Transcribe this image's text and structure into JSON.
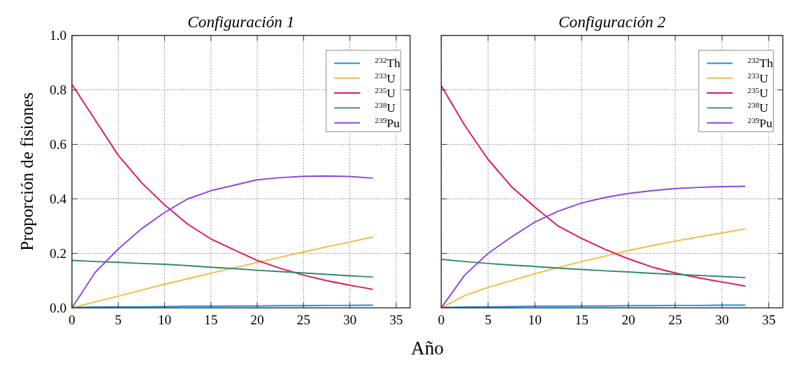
{
  "chart_data": [
    {
      "type": "line",
      "title": "Configuración 1",
      "xlabel": "Año",
      "ylabel": "Proporción de fisiones",
      "x": [
        0,
        2.5,
        5,
        7.5,
        10,
        12.5,
        15,
        17.5,
        20,
        22.5,
        25,
        27.5,
        30,
        32.5
      ],
      "xlim": [
        0,
        36.5
      ],
      "xticks": [
        0,
        5,
        10,
        15,
        20,
        25,
        30,
        35
      ],
      "ylim": [
        0,
        1
      ],
      "yticks": [
        {
          "value": 0,
          "label": "0.0"
        },
        0.2,
        0.4,
        0.6,
        0.8,
        {
          "value": 1,
          "label": "1.0"
        }
      ],
      "grid": true,
      "legend": "top right",
      "series": [
        {
          "name": "$^{232}$Th",
          "color": "#1f8fdc",
          "values": [
            0.002,
            0.003,
            0.004,
            0.004,
            0.005,
            0.006,
            0.006,
            0.007,
            0.007,
            0.008,
            0.008,
            0.009,
            0.009,
            0.01
          ]
        },
        {
          "name": "$^{233}$U",
          "color": "#f5b942",
          "values": [
            0,
            0.022,
            0.043,
            0.065,
            0.087,
            0.107,
            0.127,
            0.147,
            0.167,
            0.186,
            0.205,
            0.224,
            0.242,
            0.26
          ]
        },
        {
          "name": "$^{235}$U",
          "color": "#e0155a",
          "values": [
            0.82,
            0.69,
            0.56,
            0.46,
            0.378,
            0.307,
            0.253,
            0.213,
            0.174,
            0.145,
            0.12,
            0.1,
            0.083,
            0.068
          ]
        },
        {
          "name": "$^{238}$U",
          "color": "#2e8a66",
          "values": [
            0.174,
            0.17,
            0.167,
            0.163,
            0.16,
            0.155,
            0.149,
            0.144,
            0.138,
            0.133,
            0.128,
            0.123,
            0.118,
            0.113
          ]
        },
        {
          "name": "$^{239}$Pu",
          "color": "#8a46e0",
          "values": [
            0,
            0.13,
            0.216,
            0.29,
            0.35,
            0.4,
            0.43,
            0.45,
            0.47,
            0.478,
            0.483,
            0.484,
            0.482,
            0.476
          ]
        }
      ]
    },
    {
      "type": "line",
      "title": "Configuración 2",
      "x": [
        0,
        2.5,
        5,
        7.5,
        10,
        12.5,
        15,
        17.5,
        20,
        22.5,
        25,
        27.5,
        30,
        32.5
      ],
      "xlim": [
        0,
        36.5
      ],
      "xticks": [
        0,
        5,
        10,
        15,
        20,
        25,
        30,
        35
      ],
      "ylim": [
        0,
        1
      ],
      "yticks": [
        0,
        0.2,
        0.4,
        0.6,
        0.8,
        1
      ],
      "tick_labels": "x",
      "grid": true,
      "legend": "top right",
      "series": [
        {
          "name": "$^{232}$Th",
          "color": "#1f8fdc",
          "values": [
            0.002,
            0.003,
            0.004,
            0.005,
            0.006,
            0.006,
            0.007,
            0.007,
            0.008,
            0.008,
            0.009,
            0.009,
            0.01,
            0.01
          ]
        },
        {
          "name": "$^{233}$U",
          "color": "#f5b942",
          "values": [
            0,
            0.045,
            0.075,
            0.1,
            0.125,
            0.148,
            0.17,
            0.19,
            0.21,
            0.228,
            0.245,
            0.26,
            0.275,
            0.29
          ]
        },
        {
          "name": "$^{235}$U",
          "color": "#e0155a",
          "values": [
            0.815,
            0.67,
            0.545,
            0.445,
            0.37,
            0.3,
            0.255,
            0.215,
            0.18,
            0.15,
            0.128,
            0.11,
            0.095,
            0.08
          ]
        },
        {
          "name": "$^{238}$U",
          "color": "#2e8a66",
          "values": [
            0.178,
            0.17,
            0.163,
            0.157,
            0.152,
            0.146,
            0.141,
            0.136,
            0.132,
            0.127,
            0.123,
            0.119,
            0.115,
            0.111
          ]
        },
        {
          "name": "$^{239}$Pu",
          "color": "#8a46e0",
          "values": [
            0,
            0.12,
            0.2,
            0.26,
            0.315,
            0.355,
            0.385,
            0.405,
            0.42,
            0.43,
            0.438,
            0.442,
            0.445,
            0.446
          ]
        }
      ]
    }
  ]
}
